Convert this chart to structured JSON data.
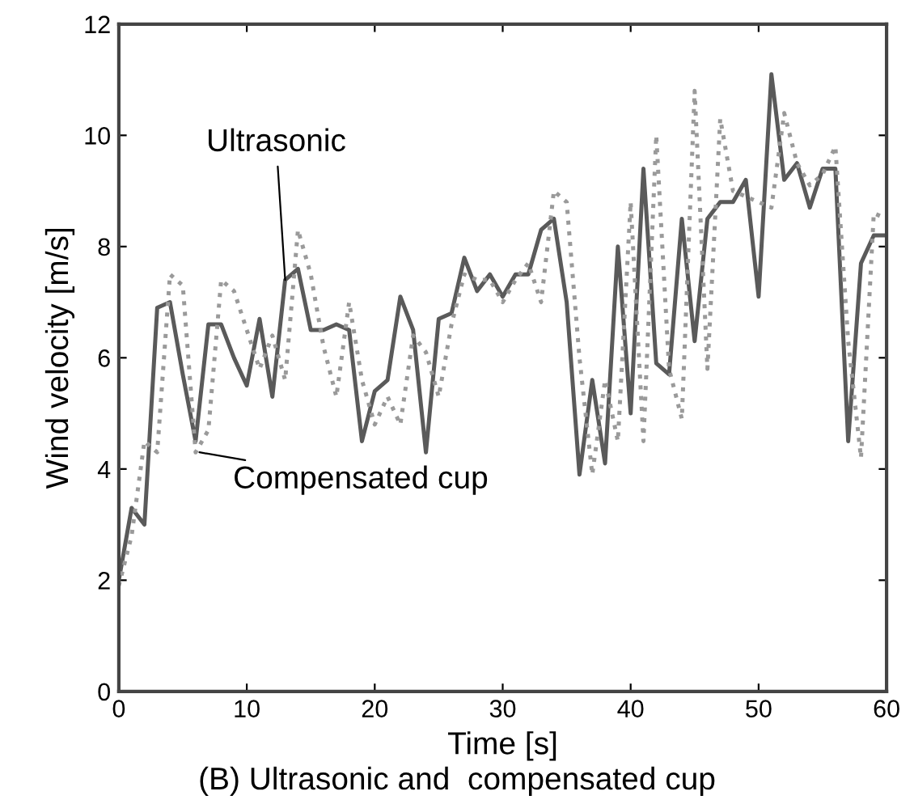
{
  "chart_data": {
    "type": "line",
    "xlabel": "Time [s]",
    "ylabel": "Wind velocity [m/s]",
    "x": [
      0,
      1,
      2,
      3,
      4,
      5,
      6,
      7,
      8,
      9,
      10,
      11,
      12,
      13,
      14,
      15,
      16,
      17,
      18,
      19,
      20,
      21,
      22,
      23,
      24,
      25,
      26,
      27,
      28,
      29,
      30,
      31,
      32,
      33,
      34,
      35,
      36,
      37,
      38,
      39,
      40,
      41,
      42,
      43,
      44,
      45,
      46,
      47,
      48,
      49,
      50,
      51,
      52,
      53,
      54,
      55,
      56,
      57,
      58,
      59,
      60
    ],
    "series": [
      {
        "color": "#5a5a5a",
        "line_style": "solid",
        "values": [
          2.0,
          3.3,
          3.0,
          6.9,
          7.0,
          5.7,
          4.5,
          6.6,
          6.6,
          6.0,
          5.5,
          6.7,
          5.3,
          7.4,
          7.6,
          6.5,
          6.5,
          6.6,
          6.5,
          4.5,
          5.4,
          5.6,
          7.1,
          6.5,
          4.3,
          6.7,
          6.8,
          7.8,
          7.2,
          7.5,
          7.1,
          7.5,
          7.5,
          8.3,
          8.5,
          7.0,
          3.9,
          5.6,
          4.1,
          8.0,
          5.0,
          9.4,
          5.9,
          5.7,
          8.5,
          6.3,
          8.5,
          8.8,
          8.8,
          9.2,
          7.1,
          11.1,
          9.2,
          9.5,
          8.7,
          9.4,
          9.4,
          4.5,
          7.7,
          8.2,
          8.2
        ]
      },
      {
        "color": "#9a9a9a",
        "line_style": "dotted",
        "values": [
          1.9,
          2.8,
          4.5,
          4.3,
          7.5,
          7.3,
          4.3,
          4.7,
          7.4,
          7.2,
          6.5,
          5.8,
          6.4,
          5.6,
          8.3,
          7.5,
          6.2,
          5.3,
          7.0,
          5.6,
          4.8,
          5.3,
          4.8,
          6.4,
          6.1,
          5.3,
          6.6,
          7.5,
          7.4,
          7.4,
          7.0,
          7.4,
          7.7,
          7.0,
          9.0,
          8.8,
          6.0,
          3.9,
          5.6,
          4.5,
          8.8,
          4.5,
          10.0,
          5.8,
          4.9,
          10.8,
          5.8,
          10.3,
          9.0,
          8.9,
          8.8,
          8.7,
          10.4,
          9.5,
          9.1,
          9.3,
          9.8,
          6.3,
          4.2,
          8.6,
          8.5
        ]
      }
    ],
    "annotations": [
      {
        "text": "Ultrasonic",
        "x": 13,
        "y": 7.4
      },
      {
        "text": "Compensated cup",
        "x": 6.3,
        "y": 4.3
      },
      "(B) Ultrasonic and  compensated cup"
    ],
    "xlim": [
      0,
      60
    ],
    "ylim": [
      0,
      12
    ],
    "xticks": [
      0,
      10,
      20,
      30,
      40,
      50,
      60
    ],
    "yticks": [
      0,
      2,
      4,
      6,
      8,
      10,
      12
    ],
    "grid": false,
    "legend": false
  }
}
